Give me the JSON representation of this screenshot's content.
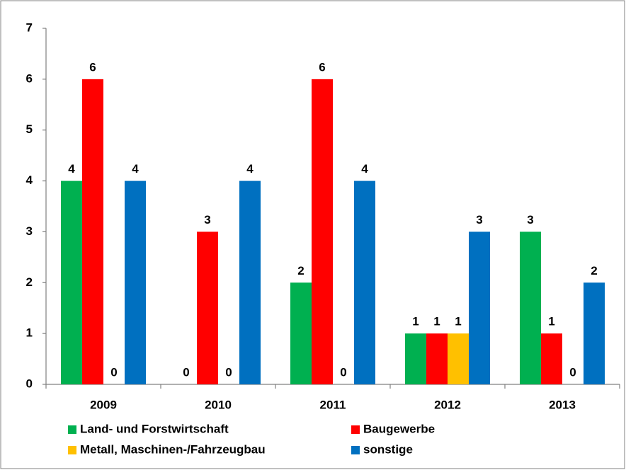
{
  "chart_data": {
    "type": "bar",
    "categories": [
      "2009",
      "2010",
      "2011",
      "2012",
      "2013"
    ],
    "series": [
      {
        "name": "Land- und Forstwirtschaft",
        "color": "#00b050",
        "values": [
          4,
          0,
          2,
          1,
          3
        ]
      },
      {
        "name": "Baugewerbe",
        "color": "#ff0000",
        "values": [
          6,
          3,
          6,
          1,
          1
        ]
      },
      {
        "name": "Metall, Maschinen-/Fahrzeugbau",
        "color": "#ffc000",
        "values": [
          0,
          0,
          0,
          1,
          0
        ]
      },
      {
        "name": "sonstige",
        "color": "#0070c0",
        "values": [
          4,
          4,
          4,
          3,
          2
        ]
      }
    ],
    "ylim": [
      0,
      7
    ],
    "yticks": [
      0,
      1,
      2,
      3,
      4,
      5,
      6,
      7
    ],
    "grid": false,
    "legend": "bottom"
  }
}
